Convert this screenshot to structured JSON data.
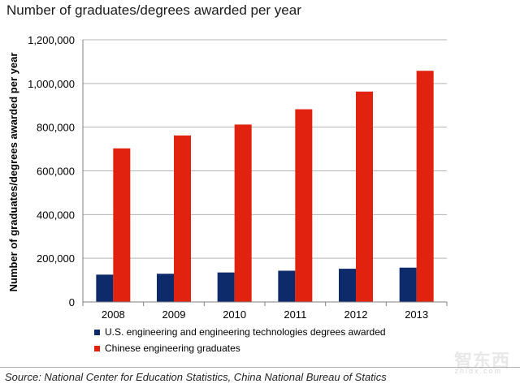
{
  "title": "Number of graduates/degrees awarded per year",
  "source": "Source: National Center for Education Statistics, China National Bureau of Statics",
  "watermark": {
    "text": "智东西",
    "subtext": "zhidx.com"
  },
  "colors": {
    "us": "#0d2a6b",
    "china": "#e0220f",
    "grid": "#b5b5b5"
  },
  "chart_data": {
    "type": "bar",
    "title": "Number of graduates/degrees awarded per year",
    "xlabel": "",
    "ylabel": "Number of graduates/degrees awarded per year",
    "categories": [
      "2008",
      "2009",
      "2010",
      "2011",
      "2012",
      "2013"
    ],
    "ylim": [
      0,
      1200000
    ],
    "yticks": [
      0,
      200000,
      400000,
      600000,
      800000,
      1000000,
      1200000
    ],
    "ytick_labels": [
      "0",
      "200,000",
      "400,000",
      "600,000",
      "800,000",
      "1,000,000",
      "1,200,000"
    ],
    "grid": "horizontal",
    "legend_position": "bottom",
    "series": [
      {
        "name": "U.S. engineering and engineering technologies degrees awarded",
        "color": "#0d2a6b",
        "values": [
          125000,
          129000,
          135000,
          143000,
          152000,
          157000
        ]
      },
      {
        "name": "Chinese engineering graduates",
        "color": "#e0220f",
        "values": [
          703000,
          762000,
          812000,
          882000,
          963000,
          1058000
        ]
      }
    ]
  }
}
